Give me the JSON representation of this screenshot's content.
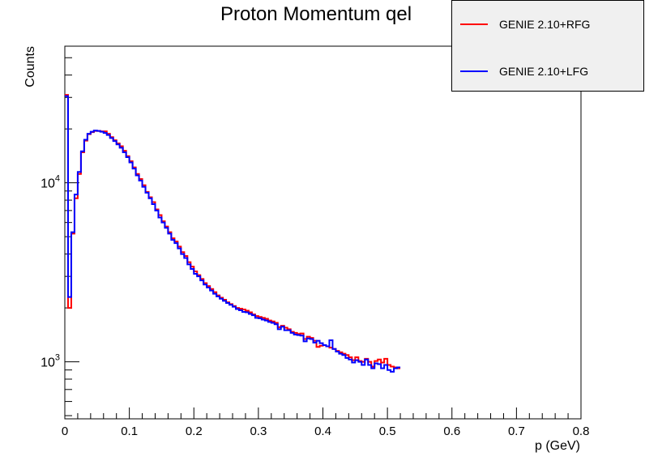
{
  "chart_data": {
    "type": "line",
    "title": "Proton Momentum qel",
    "xlabel": "p (GeV)",
    "ylabel": "Counts",
    "xlim": [
      0,
      0.8
    ],
    "ylim": [
      480,
      58000
    ],
    "yscale": "log",
    "grid": false,
    "legend_position": "top-right",
    "x_ticks": [
      "0",
      "0.1",
      "0.2",
      "0.3",
      "0.4",
      "0.5",
      "0.6",
      "0.7",
      "0.8"
    ],
    "y_ticks": [
      "10^3",
      "10^4"
    ],
    "bin_width": 0.005,
    "series": [
      {
        "name": "GENIE 2.10+RFG",
        "color": "#ff0000",
        "values": [
          31000,
          2000,
          5200,
          8200,
          11200,
          14800,
          17200,
          18700,
          19200,
          19500,
          19500,
          19400,
          19400,
          18800,
          18000,
          17300,
          16600,
          16000,
          15100,
          14100,
          13200,
          12200,
          11200,
          10500,
          9700,
          8900,
          8300,
          7800,
          7100,
          6600,
          6100,
          5700,
          5300,
          4900,
          4700,
          4400,
          4100,
          3900,
          3600,
          3400,
          3200,
          3050,
          2900,
          2750,
          2650,
          2550,
          2450,
          2350,
          2280,
          2220,
          2150,
          2100,
          2050,
          2000,
          1980,
          1960,
          1930,
          1890,
          1840,
          1800,
          1780,
          1760,
          1740,
          1700,
          1680,
          1650,
          1560,
          1590,
          1550,
          1520,
          1470,
          1450,
          1430,
          1440,
          1340,
          1380,
          1360,
          1310,
          1210,
          1230,
          1240,
          1220,
          1200,
          1180,
          1150,
          1130,
          1110,
          1090,
          1060,
          1020,
          1060,
          1010,
          1000,
          1040,
          1000,
          940,
          1010,
          1030,
          990,
          1040,
          960,
          940,
          930,
          920
        ]
      },
      {
        "name": "GENIE 2.10+LFG",
        "color": "#0000ff",
        "values": [
          30500,
          2300,
          5300,
          8600,
          11500,
          15000,
          17400,
          18800,
          19300,
          19600,
          19500,
          19300,
          19000,
          18500,
          17800,
          17100,
          16400,
          15700,
          14800,
          13900,
          13000,
          12000,
          11000,
          10300,
          9500,
          8800,
          8200,
          7600,
          7000,
          6400,
          6000,
          5600,
          5200,
          4800,
          4600,
          4300,
          4000,
          3800,
          3500,
          3300,
          3100,
          3000,
          2850,
          2700,
          2600,
          2500,
          2400,
          2320,
          2250,
          2190,
          2130,
          2080,
          2030,
          1970,
          1940,
          1900,
          1890,
          1850,
          1820,
          1760,
          1750,
          1720,
          1700,
          1670,
          1650,
          1620,
          1520,
          1570,
          1500,
          1500,
          1450,
          1420,
          1410,
          1400,
          1300,
          1350,
          1340,
          1280,
          1310,
          1270,
          1240,
          1220,
          1320,
          1180,
          1140,
          1110,
          1090,
          1050,
          1030,
          990,
          1020,
          1000,
          960,
          1030,
          960,
          920,
          980,
          970,
          920,
          960,
          900,
          880,
          920,
          930
        ]
      }
    ]
  },
  "legend": {
    "entries": [
      {
        "label": "GENIE 2.10+RFG",
        "color": "#ff0000"
      },
      {
        "label": "GENIE 2.10+LFG",
        "color": "#0000ff"
      }
    ]
  }
}
